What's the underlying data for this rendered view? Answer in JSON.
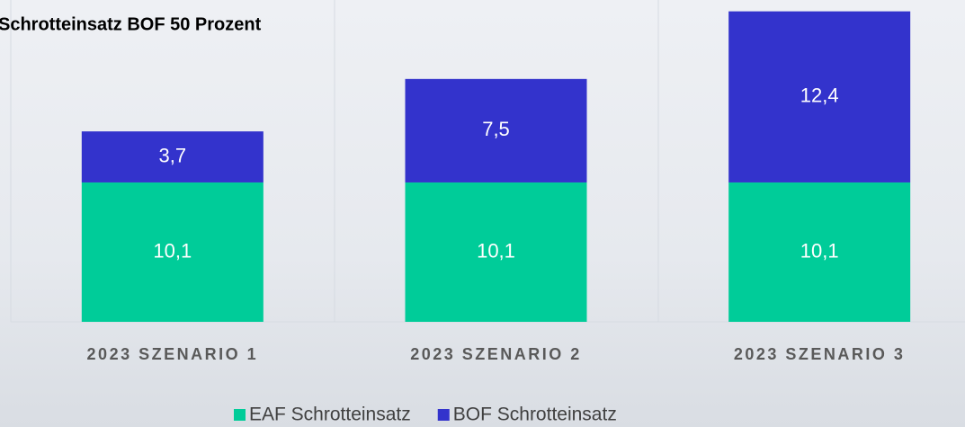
{
  "chart_data": {
    "type": "stacked-bar",
    "title": "Schrotteinsatz BOF 50 Prozent",
    "categories": [
      "2023 SZENARIO 1",
      "2023 SZENARIO 2",
      "2023 SZENARIO 3"
    ],
    "series": [
      {
        "name": "EAF Schrotteinsatz",
        "color": "#00cc99",
        "values": [
          10.1,
          10.1,
          10.1
        ],
        "value_labels": [
          "10,1",
          "10,1",
          "10,1"
        ]
      },
      {
        "name": "BOF Schrotteinsatz",
        "color": "#3333cc",
        "values": [
          3.7,
          7.5,
          12.4
        ],
        "value_labels": [
          "3,7",
          "7,5",
          "12,4"
        ]
      }
    ]
  }
}
